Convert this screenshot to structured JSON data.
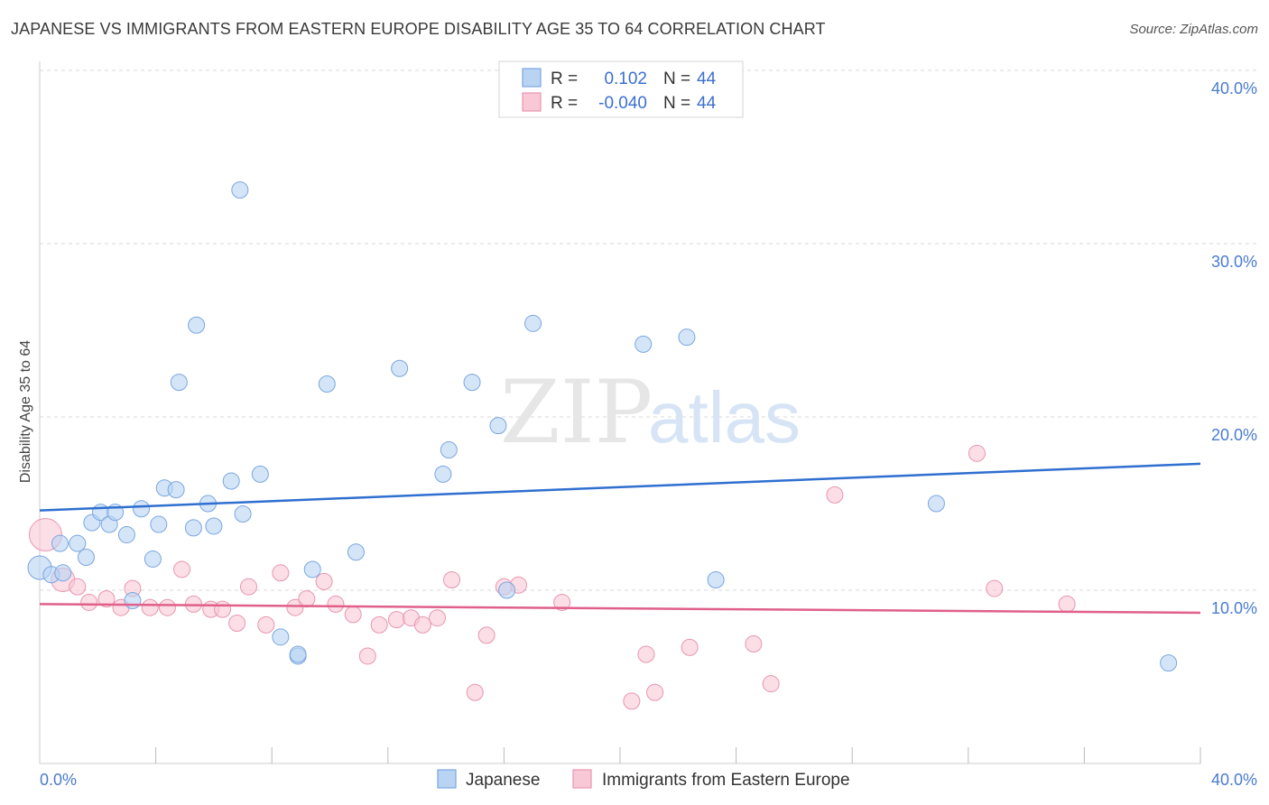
{
  "title": "JAPANESE VS IMMIGRANTS FROM EASTERN EUROPE DISABILITY AGE 35 TO 64 CORRELATION CHART",
  "source": "Source: ZipAtlas.com",
  "watermark": {
    "zip": "ZIP",
    "atlas": "atlas"
  },
  "colors": {
    "blue_fill": "#b9d3f3",
    "blue_stroke": "#7aa6e0",
    "blue_line": "#2f6fd0",
    "pink_fill": "#f8c8d6",
    "pink_stroke": "#e896b0",
    "pink_line": "#e0608a",
    "axis_text": "#4a7bd0",
    "grid": "#d9d9d9"
  },
  "legend": {
    "rows": [
      {
        "r_label": "R =",
        "r_value": "0.102",
        "n_label": "N =",
        "n_value": "44",
        "color": "blue"
      },
      {
        "r_label": "R =",
        "r_value": "-0.040",
        "n_label": "N =",
        "n_value": "44",
        "color": "pink"
      }
    ]
  },
  "bottom_legend": [
    {
      "label": "Japanese",
      "color": "blue"
    },
    {
      "label": "Immigrants from Eastern Europe",
      "color": "pink"
    }
  ],
  "chart_data": {
    "type": "scatter",
    "title": "JAPANESE VS IMMIGRANTS FROM EASTERN EUROPE DISABILITY AGE 35 TO 64 CORRELATION CHART",
    "xlabel": "",
    "ylabel": "Disability Age 35 to 64",
    "xlim": [
      0,
      40
    ],
    "ylim": [
      0,
      40
    ],
    "x_tick_labels": [
      "0.0%",
      "40.0%"
    ],
    "y_ticks": [
      10,
      20,
      30,
      40
    ],
    "y_tick_labels": [
      "10.0%",
      "20.0%",
      "30.0%",
      "40.0%"
    ],
    "grid": true,
    "series": [
      {
        "name": "Japanese",
        "color": "blue",
        "trend": {
          "x": [
            0,
            40
          ],
          "y": [
            14.6,
            17.3
          ]
        },
        "points": [
          [
            0.0,
            11.3,
            1
          ],
          [
            0.4,
            10.9,
            0
          ],
          [
            0.8,
            11.0,
            0
          ],
          [
            0.7,
            12.7,
            0
          ],
          [
            1.3,
            12.7,
            0
          ],
          [
            1.6,
            11.9,
            0
          ],
          [
            1.8,
            13.9,
            0
          ],
          [
            2.1,
            14.5,
            0
          ],
          [
            2.4,
            13.8,
            0
          ],
          [
            2.6,
            14.5,
            0
          ],
          [
            3.0,
            13.2,
            0
          ],
          [
            3.5,
            14.7,
            0
          ],
          [
            3.2,
            9.4,
            0
          ],
          [
            3.9,
            11.8,
            0
          ],
          [
            4.1,
            13.8,
            0
          ],
          [
            4.3,
            15.9,
            0
          ],
          [
            4.7,
            15.8,
            0
          ],
          [
            4.8,
            22.0,
            0
          ],
          [
            5.3,
            13.6,
            0
          ],
          [
            5.4,
            25.3,
            0
          ],
          [
            5.8,
            15.0,
            0
          ],
          [
            6.0,
            13.7,
            0
          ],
          [
            6.6,
            16.3,
            0
          ],
          [
            6.9,
            33.1,
            0
          ],
          [
            7.0,
            14.4,
            0
          ],
          [
            7.6,
            16.7,
            0
          ],
          [
            8.3,
            7.3,
            0
          ],
          [
            8.9,
            6.2,
            0
          ],
          [
            8.9,
            6.3,
            0
          ],
          [
            9.4,
            11.2,
            0
          ],
          [
            9.9,
            21.9,
            0
          ],
          [
            10.9,
            12.2,
            0
          ],
          [
            12.4,
            22.8,
            0
          ],
          [
            13.9,
            16.7,
            0
          ],
          [
            14.1,
            18.1,
            0
          ],
          [
            14.9,
            22.0,
            0
          ],
          [
            15.8,
            19.5,
            0
          ],
          [
            16.1,
            10.0,
            0
          ],
          [
            17.0,
            25.4,
            0
          ],
          [
            20.8,
            24.2,
            0
          ],
          [
            22.3,
            24.6,
            0
          ],
          [
            23.3,
            10.6,
            0
          ],
          [
            30.9,
            15.0,
            0
          ],
          [
            38.9,
            5.8,
            0
          ]
        ]
      },
      {
        "name": "Immigrants from Eastern Europe",
        "color": "pink",
        "trend": {
          "x": [
            0,
            40
          ],
          "y": [
            9.2,
            8.7
          ]
        },
        "points": [
          [
            0.2,
            13.2,
            2
          ],
          [
            0.8,
            10.6,
            1
          ],
          [
            1.3,
            10.2,
            0
          ],
          [
            1.7,
            9.3,
            0
          ],
          [
            2.3,
            9.5,
            0
          ],
          [
            2.8,
            9.0,
            0
          ],
          [
            3.2,
            10.1,
            0
          ],
          [
            3.8,
            9.0,
            0
          ],
          [
            4.4,
            9.0,
            0
          ],
          [
            4.9,
            11.2,
            0
          ],
          [
            5.3,
            9.2,
            0
          ],
          [
            5.9,
            8.9,
            0
          ],
          [
            6.3,
            8.9,
            0
          ],
          [
            6.8,
            8.1,
            0
          ],
          [
            7.2,
            10.2,
            0
          ],
          [
            7.8,
            8.0,
            0
          ],
          [
            8.3,
            11.0,
            0
          ],
          [
            8.8,
            9.0,
            0
          ],
          [
            9.2,
            9.5,
            0
          ],
          [
            9.8,
            10.5,
            0
          ],
          [
            10.2,
            9.2,
            0
          ],
          [
            10.8,
            8.6,
            0
          ],
          [
            11.3,
            6.2,
            0
          ],
          [
            11.7,
            8.0,
            0
          ],
          [
            12.3,
            8.3,
            0
          ],
          [
            12.8,
            8.4,
            0
          ],
          [
            13.2,
            8.0,
            0
          ],
          [
            13.7,
            8.4,
            0
          ],
          [
            14.2,
            10.6,
            0
          ],
          [
            15.4,
            7.4,
            0
          ],
          [
            15.0,
            4.1,
            0
          ],
          [
            16.5,
            10.3,
            0
          ],
          [
            16.0,
            10.2,
            0
          ],
          [
            18.0,
            9.3,
            0
          ],
          [
            20.4,
            3.6,
            0
          ],
          [
            20.9,
            6.3,
            0
          ],
          [
            21.2,
            4.1,
            0
          ],
          [
            22.4,
            6.7,
            0
          ],
          [
            24.6,
            6.9,
            0
          ],
          [
            25.2,
            4.6,
            0
          ],
          [
            27.4,
            15.5,
            0
          ],
          [
            32.3,
            17.9,
            0
          ],
          [
            32.9,
            10.1,
            0
          ],
          [
            35.4,
            9.2,
            0
          ]
        ]
      }
    ]
  }
}
